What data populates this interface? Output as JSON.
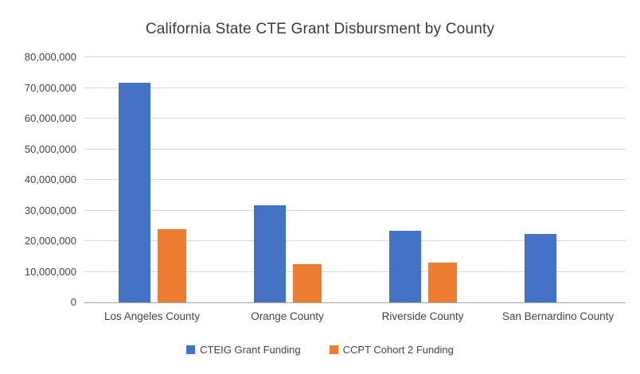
{
  "chart_data": {
    "type": "bar",
    "title": "California State CTE Grant Disbursment by County",
    "categories": [
      "Los Angeles County",
      "Orange County",
      "Riverside County",
      "San Bernardino County"
    ],
    "series": [
      {
        "name": "CTEIG Grant Funding",
        "color": "#4472C4",
        "values": [
          71700000,
          31700000,
          23300000,
          22300000
        ]
      },
      {
        "name": "CCPT Cohort 2 Funding",
        "color": "#ED7D31",
        "values": [
          24000000,
          12400000,
          12900000,
          0
        ]
      }
    ],
    "xlabel": "",
    "ylabel": "",
    "ylim": [
      0,
      80000000
    ],
    "ytick_step": 10000000,
    "ytick_labels": [
      "0",
      "10,000,000",
      "20,000,000",
      "30,000,000",
      "40,000,000",
      "50,000,000",
      "60,000,000",
      "70,000,000",
      "80,000,000"
    ],
    "grid": true,
    "legend_position": "bottom"
  },
  "colors": {
    "series_blue": "#4472C4",
    "series_orange": "#ED7D31",
    "gridline": "#d9d9d9",
    "axis_line": "#a6a6a6",
    "text": "#444444",
    "title_text": "#3b3b3b",
    "background": "#ffffff"
  }
}
